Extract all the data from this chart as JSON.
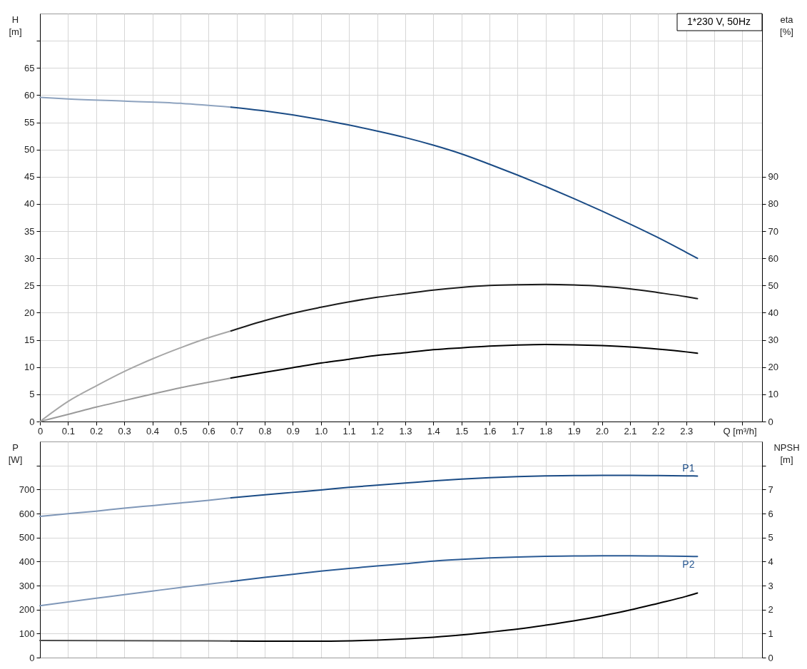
{
  "chart_data": [
    {
      "type": "line",
      "title": "1*230 V, 50Hz",
      "xlabel": "Q [m³/h]",
      "ylabel": "H [m]",
      "y2label": "eta [%]",
      "grid": true,
      "xlim": [
        0,
        2.57
      ],
      "xticks": [
        0,
        0.1,
        0.2,
        0.3,
        0.4,
        0.5,
        0.6,
        0.7,
        0.8,
        0.9,
        {
          "value": 1.0,
          "label": "1.0"
        },
        1.1,
        1.2,
        1.3,
        1.4,
        1.5,
        1.6,
        1.7,
        1.8,
        1.9,
        {
          "value": 2.0,
          "label": "2.0"
        },
        2.1,
        2.2,
        2.3,
        {
          "value": 2.4,
          "label": null
        },
        {
          "value": 2.5,
          "label": null
        }
      ],
      "ylim": [
        0,
        75
      ],
      "yticks": [
        0,
        5,
        10,
        15,
        20,
        25,
        30,
        35,
        40,
        45,
        50,
        55,
        60,
        65,
        {
          "value": 70,
          "label": null
        }
      ],
      "y2lim": [
        0,
        150
      ],
      "y2ticks": [
        0,
        10,
        20,
        30,
        40,
        50,
        60,
        70,
        80,
        90
      ],
      "series": [
        {
          "color": "#8ea3bf",
          "x": [
            0,
            0.1,
            0.3,
            0.5,
            0.68
          ],
          "values": [
            59.6,
            59.3,
            58.9,
            58.5,
            57.8
          ]
        },
        {
          "color": "#1a4b85",
          "x": [
            0.68,
            0.8,
            1.0,
            1.1,
            1.2,
            1.3,
            1.4,
            1.5,
            1.6,
            1.7,
            1.8,
            1.9,
            2.0,
            2.1,
            2.2,
            2.3,
            2.34
          ],
          "values": [
            57.8,
            57.1,
            55.5,
            54.5,
            53.4,
            52.2,
            50.8,
            49.2,
            47.3,
            45.3,
            43.2,
            41.0,
            38.7,
            36.3,
            33.8,
            31.1,
            30.0
          ]
        },
        {
          "color": "#a6a6a6",
          "axis": "y2",
          "x": [
            0,
            0.1,
            0.2,
            0.3,
            0.4,
            0.5,
            0.6,
            0.68
          ],
          "values": [
            0,
            7.4,
            13.1,
            18.4,
            23.0,
            27.1,
            30.8,
            33.3
          ]
        },
        {
          "color": "#1a1a1a",
          "axis": "y2",
          "x": [
            0.68,
            0.8,
            0.9,
            1.0,
            1.1,
            1.2,
            1.3,
            1.4,
            1.5,
            1.6,
            1.7,
            1.8,
            1.9,
            2.0,
            2.1,
            2.2,
            2.3,
            2.34
          ],
          "values": [
            33.3,
            37.1,
            39.8,
            42.0,
            44.0,
            45.7,
            47.0,
            48.3,
            49.3,
            50.0,
            50.3,
            50.4,
            50.2,
            49.7,
            48.8,
            47.4,
            45.9,
            45.2
          ]
        },
        {
          "color": "#9a9a9a",
          "axis": "y2",
          "x": [
            0,
            0.1,
            0.2,
            0.3,
            0.4,
            0.5,
            0.6,
            0.68
          ],
          "values": [
            0,
            2.6,
            5.3,
            7.7,
            10.1,
            12.4,
            14.4,
            16.0
          ]
        },
        {
          "color": "#000000",
          "axis": "y2",
          "x": [
            0.68,
            0.8,
            0.9,
            1.0,
            1.1,
            1.2,
            1.3,
            1.4,
            1.5,
            1.6,
            1.7,
            1.8,
            1.9,
            2.0,
            2.1,
            2.2,
            2.3,
            2.34
          ],
          "values": [
            16.0,
            18.1,
            19.8,
            21.5,
            22.9,
            24.3,
            25.3,
            26.4,
            27.1,
            27.7,
            28.1,
            28.3,
            28.2,
            27.9,
            27.4,
            26.6,
            25.6,
            25.1
          ]
        }
      ]
    },
    {
      "type": "line",
      "ylabel": "P [W]",
      "y2label": "NPSH [m]",
      "grid": true,
      "tick_labels": "y",
      "xlim": [
        0,
        2.57
      ],
      "xticks": [
        0,
        0.1,
        0.2,
        0.3,
        0.4,
        0.5,
        0.6,
        0.7,
        0.8,
        0.9,
        1,
        1.1,
        1.2,
        1.3,
        1.4,
        1.5,
        1.6,
        1.7,
        1.8,
        1.9,
        2,
        2.1,
        2.2,
        2.3,
        2.4,
        2.5
      ],
      "ylim": [
        0,
        900
      ],
      "yticks": [
        0,
        100,
        200,
        300,
        400,
        500,
        600,
        700,
        {
          "value": 800,
          "label": null
        }
      ],
      "y2lim": [
        0,
        9
      ],
      "y2ticks": [
        0,
        1,
        2,
        3,
        4,
        5,
        6,
        7,
        {
          "value": 8,
          "label": null
        }
      ],
      "series": [
        {
          "color": "#7f97b8",
          "x": [
            0,
            0.1,
            0.2,
            0.3,
            0.4,
            0.5,
            0.6,
            0.68
          ],
          "values": [
            588,
            599,
            610,
            622,
            633,
            644,
            655,
            665
          ]
        },
        {
          "name": "P1",
          "color": "#1a4b85",
          "x": [
            0.68,
            0.8,
            0.9,
            1.0,
            1.1,
            1.2,
            1.3,
            1.4,
            1.5,
            1.6,
            1.7,
            1.8,
            1.9,
            2.0,
            2.1,
            2.2,
            2.3,
            2.34
          ],
          "values": [
            665,
            678,
            688,
            698,
            709,
            718,
            727,
            736,
            743,
            749,
            754,
            757,
            758,
            759,
            759,
            758,
            757,
            756
          ]
        },
        {
          "color": "#7f97b8",
          "x": [
            0,
            0.1,
            0.2,
            0.3,
            0.4,
            0.5,
            0.6,
            0.68
          ],
          "values": [
            216,
            232,
            247,
            262,
            277,
            292,
            306,
            317
          ]
        },
        {
          "name": "P2",
          "color": "#2a5a94",
          "x": [
            0.68,
            0.8,
            0.9,
            1.0,
            1.1,
            1.2,
            1.3,
            1.4,
            1.5,
            1.6,
            1.7,
            1.8,
            1.9,
            2.0,
            2.1,
            2.2,
            2.3,
            2.34
          ],
          "values": [
            317,
            334,
            347,
            360,
            371,
            382,
            391,
            402,
            409,
            415,
            419,
            422,
            423,
            424,
            424,
            423,
            422,
            421
          ]
        },
        {
          "color": "#4d4d4d",
          "axis": "y2",
          "x": [
            0,
            0.5,
            0.68
          ],
          "values": [
            0.71,
            0.7,
            0.69
          ]
        },
        {
          "color": "#000000",
          "axis": "y2",
          "x": [
            0.68,
            0.8,
            1.0,
            1.2,
            1.3,
            1.4,
            1.5,
            1.6,
            1.7,
            1.8,
            1.9,
            2.0,
            2.1,
            2.2,
            2.3,
            2.34
          ],
          "values": [
            0.69,
            0.68,
            0.68,
            0.73,
            0.78,
            0.85,
            0.94,
            1.06,
            1.19,
            1.35,
            1.53,
            1.74,
            1.98,
            2.26,
            2.55,
            2.69
          ]
        }
      ]
    }
  ]
}
